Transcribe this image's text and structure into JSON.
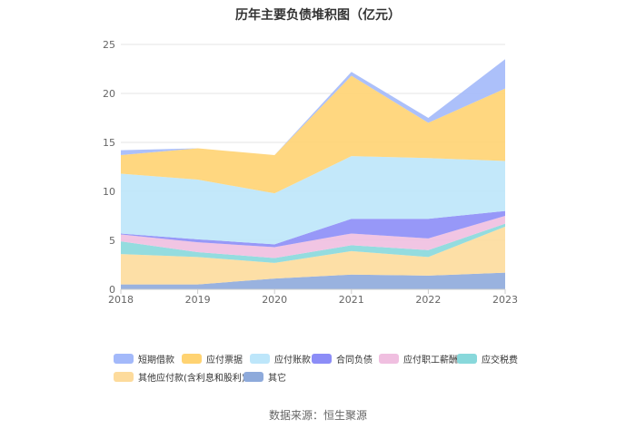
{
  "chart_data": {
    "type": "area",
    "stacked": true,
    "title": "历年主要负债堆积图（亿元）",
    "x": [
      "2018",
      "2019",
      "2020",
      "2021",
      "2022",
      "2023"
    ],
    "ylim": [
      0,
      25
    ],
    "yticks": [
      0,
      5,
      10,
      15,
      20,
      25
    ],
    "grid": true,
    "legend_position": "bottom",
    "series": [
      {
        "name": "其它",
        "color": "#8eaadb",
        "values": [
          0.5,
          0.5,
          1.1,
          1.5,
          1.4,
          1.7
        ]
      },
      {
        "name": "其他应付款(含利息和股利)",
        "color": "#fddb9c",
        "values": [
          3.1,
          2.8,
          1.6,
          2.4,
          1.9,
          4.7
        ]
      },
      {
        "name": "应交税费",
        "color": "#88d8db",
        "values": [
          1.3,
          0.5,
          0.5,
          0.6,
          0.7,
          0.3
        ]
      },
      {
        "name": "应付职工薪酬",
        "color": "#f0bfe0",
        "values": [
          0.7,
          1.0,
          1.1,
          1.2,
          1.2,
          0.8
        ]
      },
      {
        "name": "合同负债",
        "color": "#8c8df7",
        "values": [
          0.1,
          0.3,
          0.3,
          1.5,
          2.0,
          0.5
        ]
      },
      {
        "name": "应付账款",
        "color": "#bde6fa",
        "values": [
          6.1,
          6.1,
          5.2,
          6.4,
          6.2,
          5.1
        ]
      },
      {
        "name": "应付票据",
        "color": "#ffd372",
        "values": [
          1.9,
          3.2,
          3.9,
          8.2,
          3.6,
          7.4
        ]
      },
      {
        "name": "短期借款",
        "color": "#a3b9fa",
        "values": [
          0.5,
          0.0,
          0.0,
          0.4,
          0.5,
          3.0
        ]
      }
    ],
    "legend_order": [
      "短期借款",
      "应付票据",
      "应付账款",
      "合同负债",
      "应付职工薪酬",
      "应交税费",
      "其他应付款(含利息和股利)",
      "其它"
    ]
  },
  "source": "数据来源：恒生聚源"
}
